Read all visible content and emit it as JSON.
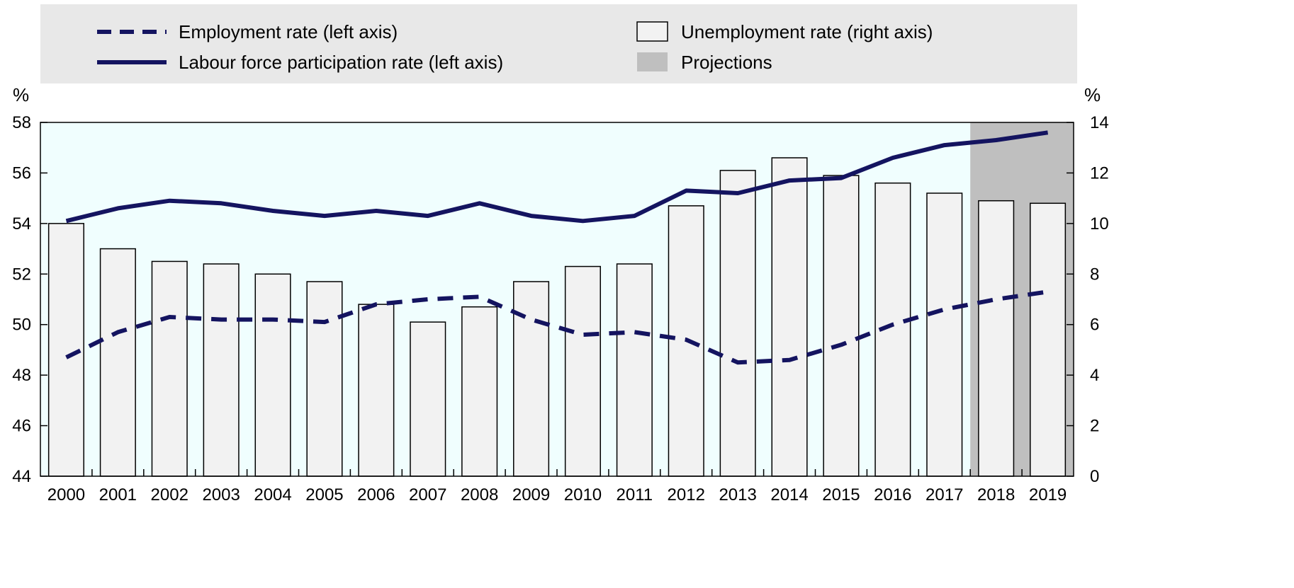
{
  "chart_data": {
    "type": "bar",
    "categories": [
      "2000",
      "2001",
      "2002",
      "2003",
      "2004",
      "2005",
      "2006",
      "2007",
      "2008",
      "2009",
      "2010",
      "2011",
      "2012",
      "2013",
      "2014",
      "2015",
      "2016",
      "2017",
      "2018",
      "2019"
    ],
    "left_axis": {
      "unit": "%",
      "ylim": [
        44,
        58
      ],
      "ticks": [
        "44",
        "46",
        "48",
        "50",
        "52",
        "54",
        "56",
        "58"
      ]
    },
    "right_axis": {
      "unit": "%",
      "ylim": [
        0,
        14
      ],
      "ticks": [
        "0",
        "2",
        "4",
        "6",
        "8",
        "10",
        "12",
        "14"
      ]
    },
    "series": [
      {
        "name": "Employment rate (left axis)",
        "kind": "line",
        "style": "dashed",
        "axis": "left",
        "color": "#141460",
        "values": [
          48.7,
          49.7,
          50.3,
          50.2,
          50.2,
          50.1,
          50.8,
          51.0,
          51.1,
          50.2,
          49.6,
          49.7,
          49.4,
          48.5,
          48.6,
          49.2,
          50.0,
          50.6,
          51.0,
          51.3
        ]
      },
      {
        "name": "Labour force participation rate (left axis)",
        "kind": "line",
        "style": "solid",
        "axis": "left",
        "color": "#141460",
        "values": [
          54.1,
          54.6,
          54.9,
          54.8,
          54.5,
          54.3,
          54.5,
          54.3,
          54.8,
          54.3,
          54.1,
          54.3,
          55.3,
          55.2,
          55.7,
          55.8,
          56.6,
          57.1,
          57.3,
          57.6
        ]
      },
      {
        "name": "Unemployment rate (right axis)",
        "kind": "bar",
        "axis": "right",
        "color": "#f2f2f2",
        "values": [
          10.0,
          9.0,
          8.5,
          8.4,
          8.0,
          7.7,
          6.8,
          6.1,
          6.7,
          7.7,
          8.3,
          8.4,
          10.7,
          12.1,
          12.6,
          11.9,
          11.6,
          11.2,
          10.9,
          10.8
        ]
      }
    ],
    "projection": {
      "name": "Projections",
      "categories": [
        "2018",
        "2019"
      ],
      "color": "#bfbfbf"
    },
    "legend_position": "top",
    "colors": {
      "plot_background": "#f0fefe",
      "legend_background": "#e8e8e8",
      "line": "#141460",
      "bar_fill": "#f2f2f2",
      "bar_stroke": "#000000"
    }
  }
}
